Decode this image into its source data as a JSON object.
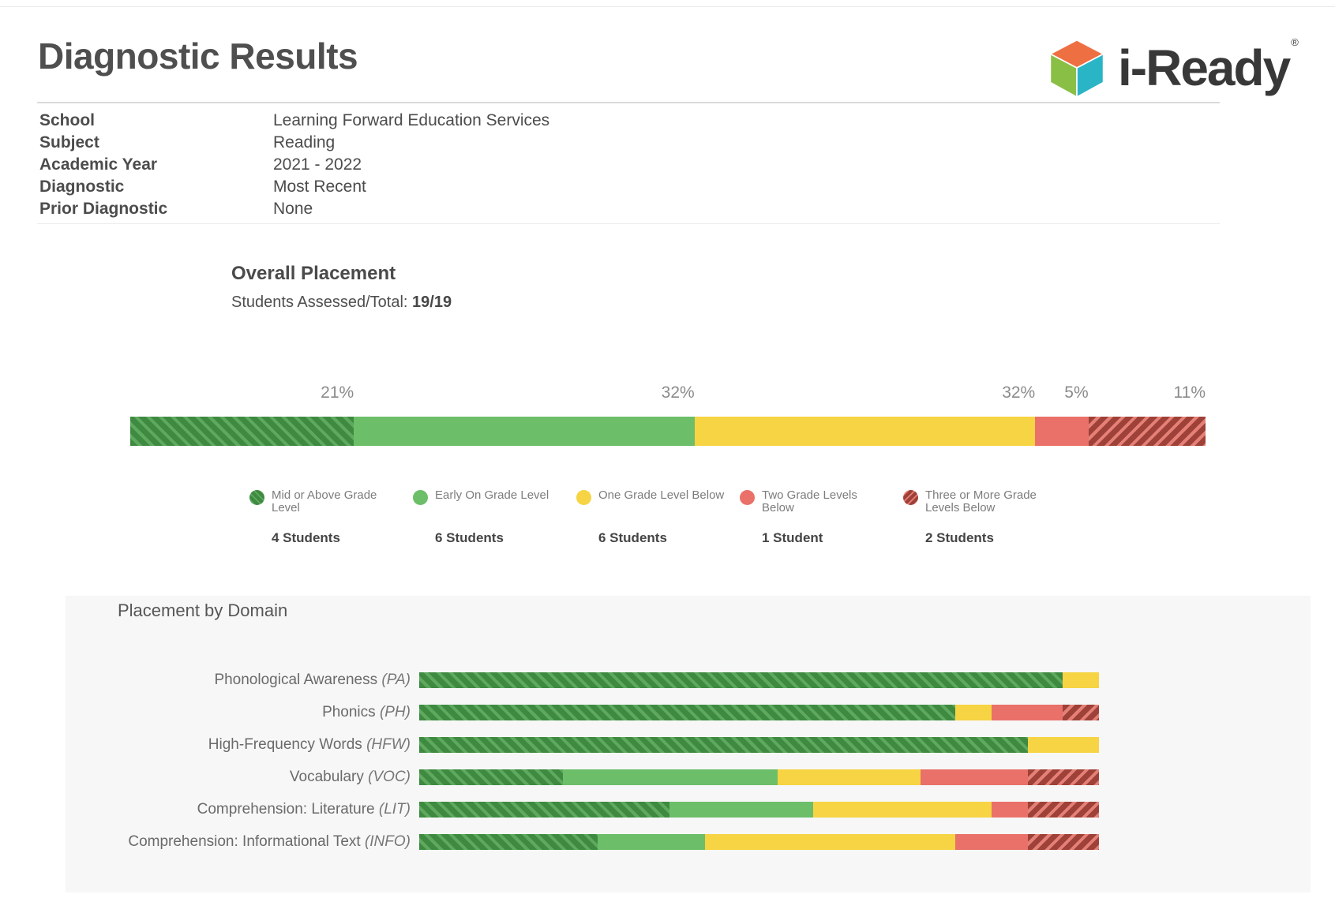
{
  "page": {
    "title": "Diagnostic Results"
  },
  "logo": {
    "brand": "i-Ready",
    "registered_mark": "®",
    "cube": {
      "top": "#ee7042",
      "left": "#8abf45",
      "right": "#2ab5c6"
    }
  },
  "meta": {
    "rows": [
      {
        "label": "School",
        "value": "Learning Forward Education Services"
      },
      {
        "label": "Subject",
        "value": "Reading"
      },
      {
        "label": "Academic Year",
        "value": "2021 - 2022"
      },
      {
        "label": "Diagnostic",
        "value": "Most Recent"
      },
      {
        "label": "Prior Diagnostic",
        "value": "None"
      }
    ]
  },
  "colors": {
    "mid_or_above": {
      "base": "#3e8a41",
      "stripe": "#5ea95e",
      "hatch_angle": "45deg"
    },
    "early_on": {
      "base": "#6cbe69"
    },
    "one_below": {
      "base": "#f6d443"
    },
    "two_below": {
      "base": "#e97169"
    },
    "three_or_more": {
      "base": "#9e4138",
      "stripe": "#e58077",
      "hatch_angle": "135deg"
    }
  },
  "overall": {
    "heading": "Overall Placement",
    "assessed_label": "Students Assessed/Total:",
    "assessed_value": "19/19",
    "segments": [
      {
        "k": "mid_or_above",
        "pct": 21,
        "pct_label": "21%"
      },
      {
        "k": "early_on",
        "pct": 32,
        "pct_label": "32%"
      },
      {
        "k": "one_below",
        "pct": 32,
        "pct_label": "32%"
      },
      {
        "k": "two_below",
        "pct": 5,
        "pct_label": "5%"
      },
      {
        "k": "three_or_more",
        "pct": 11,
        "pct_label": "11%"
      }
    ],
    "legend": [
      {
        "k": "mid_or_above",
        "label": "Mid or Above Grade\nLevel",
        "count": "4 Students"
      },
      {
        "k": "early_on",
        "label": "Early On Grade Level",
        "count": "6 Students"
      },
      {
        "k": "one_below",
        "label": "One Grade Level Below",
        "count": "6 Students"
      },
      {
        "k": "two_below",
        "label": "Two Grade Levels\nBelow",
        "count": "1 Student"
      },
      {
        "k": "three_or_more",
        "label": "Three or More Grade\nLevels Below",
        "count": "2 Students"
      }
    ]
  },
  "domains": {
    "heading": "Placement by Domain",
    "rows": [
      {
        "label": "Phonological Awareness",
        "abbr": "(PA)",
        "segments": [
          {
            "k": "mid_or_above",
            "pct": 94.7
          },
          {
            "k": "one_below",
            "pct": 5.3
          }
        ]
      },
      {
        "label": "Phonics",
        "abbr": "(PH)",
        "segments": [
          {
            "k": "mid_or_above",
            "pct": 78.9
          },
          {
            "k": "one_below",
            "pct": 5.3
          },
          {
            "k": "two_below",
            "pct": 10.5
          },
          {
            "k": "three_or_more",
            "pct": 5.3
          }
        ]
      },
      {
        "label": "High-Frequency Words",
        "abbr": "(HFW)",
        "segments": [
          {
            "k": "mid_or_above",
            "pct": 89.5
          },
          {
            "k": "one_below",
            "pct": 10.5
          }
        ]
      },
      {
        "label": "Vocabulary",
        "abbr": "(VOC)",
        "segments": [
          {
            "k": "mid_or_above",
            "pct": 21.1
          },
          {
            "k": "early_on",
            "pct": 31.6
          },
          {
            "k": "one_below",
            "pct": 21.1
          },
          {
            "k": "two_below",
            "pct": 15.8
          },
          {
            "k": "three_or_more",
            "pct": 10.4
          }
        ]
      },
      {
        "label": "Comprehension: Literature",
        "abbr": "(LIT)",
        "segments": [
          {
            "k": "mid_or_above",
            "pct": 36.8
          },
          {
            "k": "early_on",
            "pct": 21.1
          },
          {
            "k": "one_below",
            "pct": 26.3
          },
          {
            "k": "two_below",
            "pct": 5.3
          },
          {
            "k": "three_or_more",
            "pct": 10.5
          }
        ]
      },
      {
        "label": "Comprehension: Informational Text",
        "abbr": "(INFO)",
        "segments": [
          {
            "k": "mid_or_above",
            "pct": 26.3
          },
          {
            "k": "early_on",
            "pct": 15.8
          },
          {
            "k": "one_below",
            "pct": 36.8
          },
          {
            "k": "two_below",
            "pct": 10.6
          },
          {
            "k": "three_or_more",
            "pct": 10.5
          }
        ]
      }
    ]
  },
  "chart_data": [
    {
      "type": "bar",
      "title": "Overall Placement",
      "subtitle": "Students Assessed/Total: 19/19",
      "orientation": "horizontal-stacked",
      "categories": [
        "Overall"
      ],
      "series": [
        {
          "name": "Mid or Above Grade Level",
          "values": [
            21
          ],
          "students": 4,
          "color": "#3e8a41",
          "pattern": "diagonal-hatch"
        },
        {
          "name": "Early On Grade Level",
          "values": [
            32
          ],
          "students": 6,
          "color": "#6cbe69",
          "pattern": "solid"
        },
        {
          "name": "One Grade Level Below",
          "values": [
            32
          ],
          "students": 6,
          "color": "#f6d443",
          "pattern": "solid"
        },
        {
          "name": "Two Grade Levels Below",
          "values": [
            5
          ],
          "students": 1,
          "color": "#e97169",
          "pattern": "solid"
        },
        {
          "name": "Three or More Grade Levels Below",
          "values": [
            11
          ],
          "students": 2,
          "color": "#9e4138",
          "pattern": "diagonal-hatch"
        }
      ],
      "value_unit": "%",
      "data_labels": [
        "21%",
        "32%",
        "32%",
        "5%",
        "11%"
      ],
      "legend_position": "below",
      "axis": "none"
    },
    {
      "type": "bar",
      "title": "Placement by Domain",
      "orientation": "horizontal-stacked",
      "categories": [
        "Phonological Awareness (PA)",
        "Phonics (PH)",
        "High-Frequency Words (HFW)",
        "Vocabulary (VOC)",
        "Comprehension: Literature (LIT)",
        "Comprehension: Informational Text (INFO)"
      ],
      "series": [
        {
          "name": "Mid or Above Grade Level",
          "values": [
            94.7,
            78.9,
            89.5,
            21.1,
            36.8,
            26.3
          ]
        },
        {
          "name": "Early On Grade Level",
          "values": [
            0,
            0,
            0,
            31.6,
            21.1,
            15.8
          ]
        },
        {
          "name": "One Grade Level Below",
          "values": [
            5.3,
            5.3,
            10.5,
            21.1,
            26.3,
            36.8
          ]
        },
        {
          "name": "Two Grade Levels Below",
          "values": [
            0,
            10.5,
            0,
            15.8,
            5.3,
            10.6
          ]
        },
        {
          "name": "Three or More Grade Levels Below",
          "values": [
            0,
            5.3,
            0,
            10.4,
            10.5,
            10.5
          ]
        }
      ],
      "value_unit": "%",
      "xlim": [
        0,
        100
      ],
      "grid": false,
      "legend_position": "none"
    }
  ]
}
